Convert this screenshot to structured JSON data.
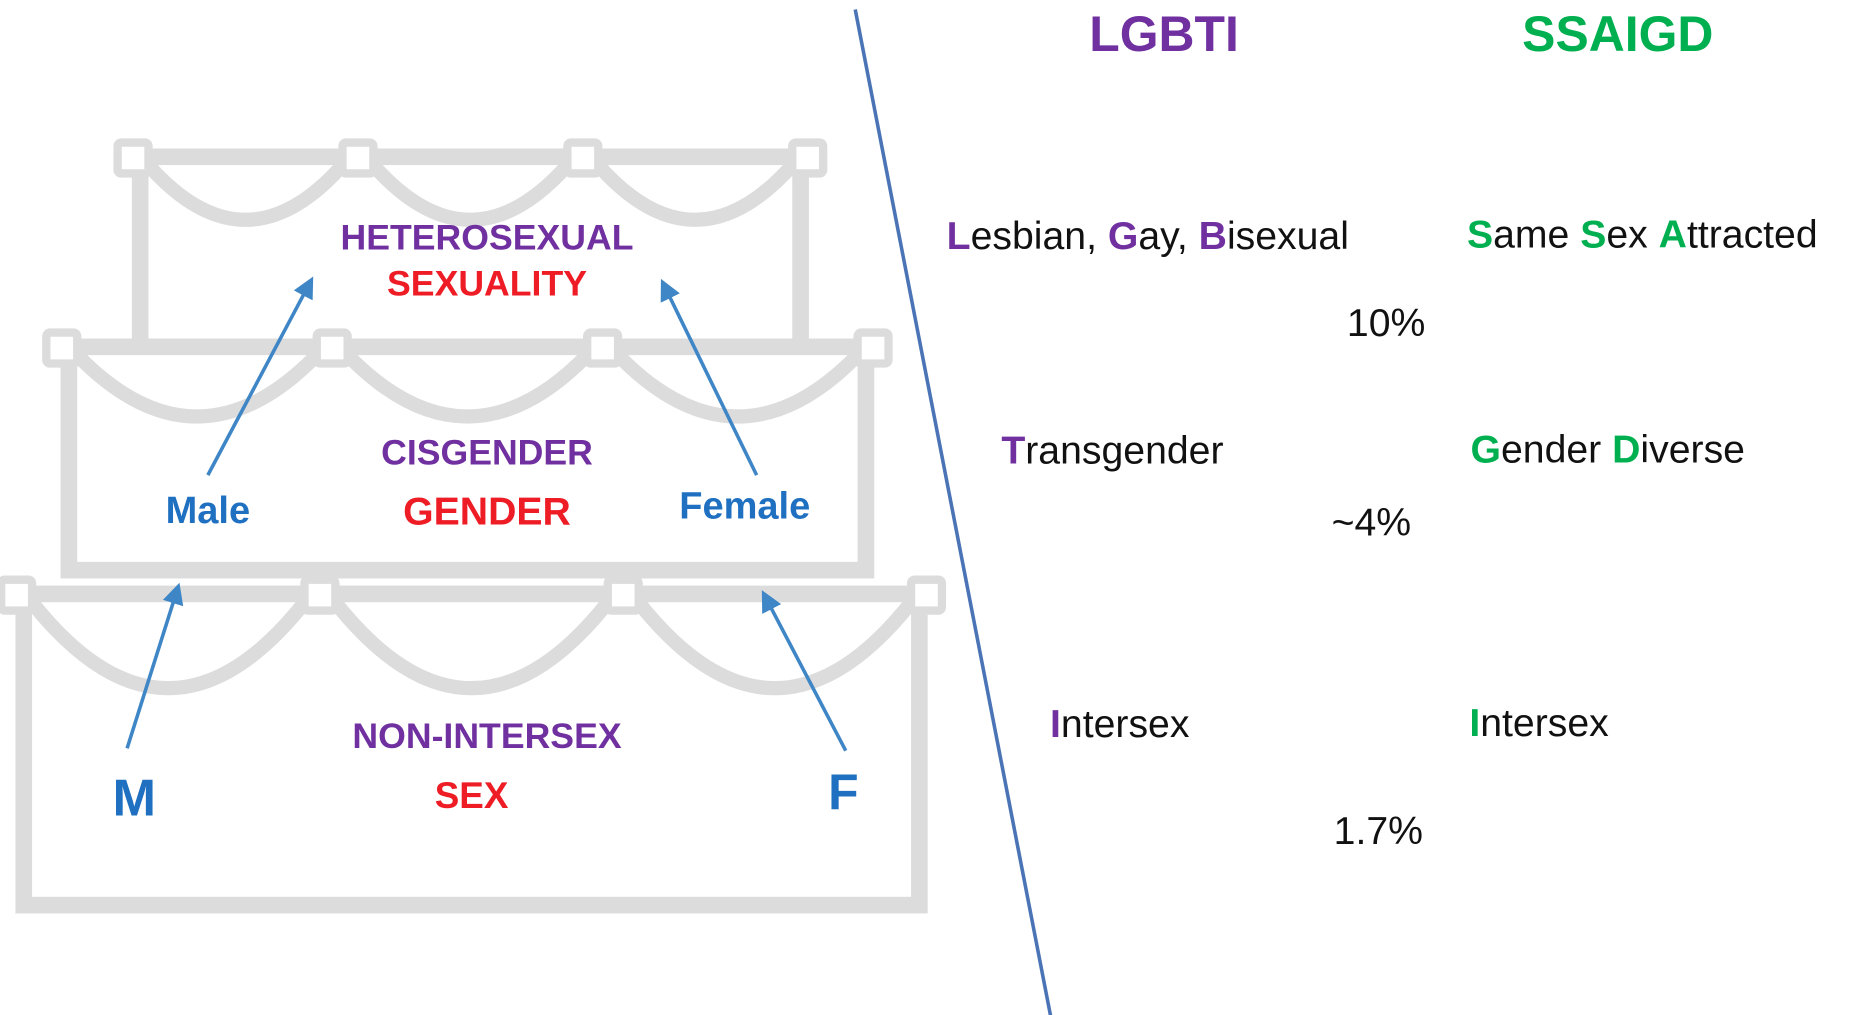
{
  "cake": {
    "layers": [
      {
        "identity": "HETEROSEXUAL",
        "dimension": "SEXUALITY"
      },
      {
        "identity": "CISGENDER",
        "dimension": "GENDER",
        "left": "Male",
        "right": "Female"
      },
      {
        "identity": "NON-INTERSEX",
        "dimension": "SEX",
        "left": "M",
        "right": "F"
      }
    ]
  },
  "headings": {
    "lgbti": "LGBTI",
    "ssaigd": "SSAIGD"
  },
  "rows": [
    {
      "lgbti": [
        "L",
        "esbian, ",
        "G",
        "ay, ",
        "B",
        "isexual"
      ],
      "ssaigd": [
        "S",
        "ame ",
        "S",
        "ex ",
        "A",
        "ttracted"
      ],
      "share": "10%"
    },
    {
      "lgbti": [
        "T",
        "ransgender"
      ],
      "ssaigd": [
        "G",
        "ender ",
        "D",
        "iverse"
      ],
      "share": "~4%"
    },
    {
      "lgbti": [
        "I",
        "ntersex"
      ],
      "ssaigd": [
        "I",
        "ntersex"
      ],
      "share": "1.7%"
    }
  ]
}
